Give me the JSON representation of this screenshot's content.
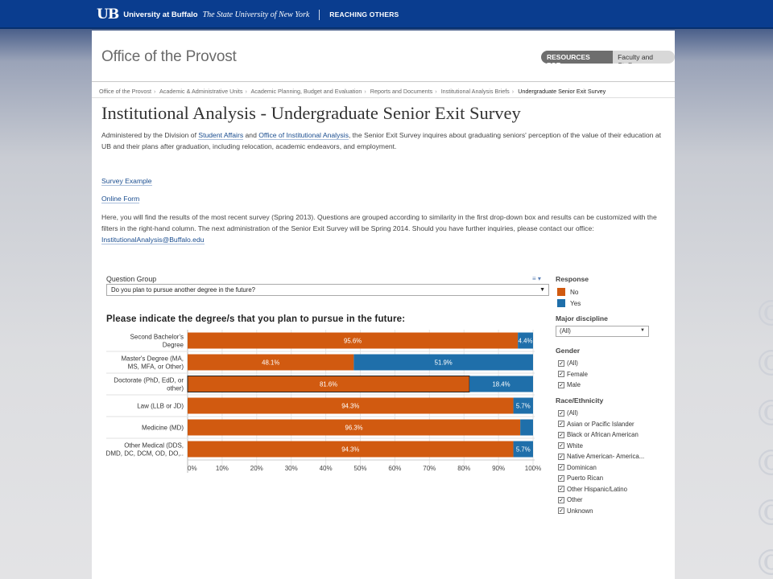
{
  "header": {
    "logo_mark": "UB",
    "logo_name": "University at Buffalo",
    "logo_sub": "The State University of New York",
    "tagline": "REACHING OTHERS"
  },
  "site": {
    "office_title": "Office of the Provost",
    "resources_label": "RESOURCES FOR:",
    "resources_value": "Faculty and Staff"
  },
  "breadcrumb": [
    "Office of the Provost",
    "Academic & Administrative Units",
    "Academic Planning, Budget and Evaluation",
    "Reports and Documents",
    "Institutional Analysis Briefs",
    "Undergraduate Senior Exit Survey"
  ],
  "page": {
    "title": "Institutional Analysis - Undergraduate Senior Exit Survey",
    "intro_a": "Administered by the Division of ",
    "intro_link1": "Student Affairs",
    "intro_b": " and ",
    "intro_link2": "Office of Institutional Analysis",
    "intro_c": ", the Senior Exit Survey inquires about graduating seniors' perception of the value of their education at UB and their plans after graduation, including relocation, academic endeavors, and employment.",
    "link_survey_example": "Survey Example",
    "link_online_form": "Online Form",
    "results_text": "Here, you will find the results of the most recent survey (Spring 2013). Questions are grouped according to similarity in the first drop-down box and results can be customized with the filters in the right-hand column.  The next administration of the Senior Exit Survey will be Spring 2014.  Should you have further inquiries, please contact our office: ",
    "contact_email": "InstitutionalAnalysis@Buffalo.edu"
  },
  "dashboard": {
    "question_group_label": "Question Group",
    "question_group_value": "Do you plan to pursue another degree in the future?",
    "response_label": "Response",
    "legend": [
      {
        "label": "No",
        "color": "#d15a10"
      },
      {
        "label": "Yes",
        "color": "#1f6faa"
      }
    ],
    "major_label": "Major discipline",
    "major_value": "(All)",
    "gender_label": "Gender",
    "gender_options": [
      "(All)",
      "Female",
      "Male"
    ],
    "race_label": "Race/Ethnicity",
    "race_options": [
      "(All)",
      "Asian or Pacific Islander",
      "Black or African American",
      "White",
      "Native American- America...",
      "Dominican",
      "Puerto Rican",
      "Other Hispanic/Latino",
      "Other",
      "Unknown"
    ]
  },
  "chart_data": {
    "type": "bar",
    "orientation": "horizontal",
    "stacked": true,
    "title": "Please indicate the degree/s that you plan to pursue in the future:",
    "categories": [
      [
        "Second Bachelor's",
        "Degree"
      ],
      [
        "Master's Degree (MA,",
        "MS, MFA, or Other)"
      ],
      [
        "Doctorate (PhD, EdD, or",
        "other)"
      ],
      [
        "Law (LLB or JD)"
      ],
      [
        "Medicine (MD)"
      ],
      [
        "Other Medical (DDS,",
        "DMD, DC, DCM, OD, DO,.."
      ]
    ],
    "series": [
      {
        "name": "No",
        "color": "#d15a10",
        "values": [
          95.6,
          48.1,
          81.6,
          94.3,
          96.3,
          94.3
        ],
        "labels": [
          "95.6%",
          "48.1%",
          "81.6%",
          "94.3%",
          "96.3%",
          "94.3%"
        ]
      },
      {
        "name": "Yes",
        "color": "#1f6faa",
        "values": [
          4.4,
          51.9,
          18.4,
          5.7,
          3.7,
          5.7
        ],
        "labels": [
          "4.4%",
          "51.9%",
          "18.4%",
          "5.7%",
          "",
          "5.7%"
        ]
      }
    ],
    "xticks": [
      "0%",
      "10%",
      "20%",
      "30%",
      "40%",
      "50%",
      "60%",
      "70%",
      "80%",
      "90%",
      "100%"
    ],
    "xlim": [
      0,
      100
    ],
    "highlighted_category_index": 2
  }
}
